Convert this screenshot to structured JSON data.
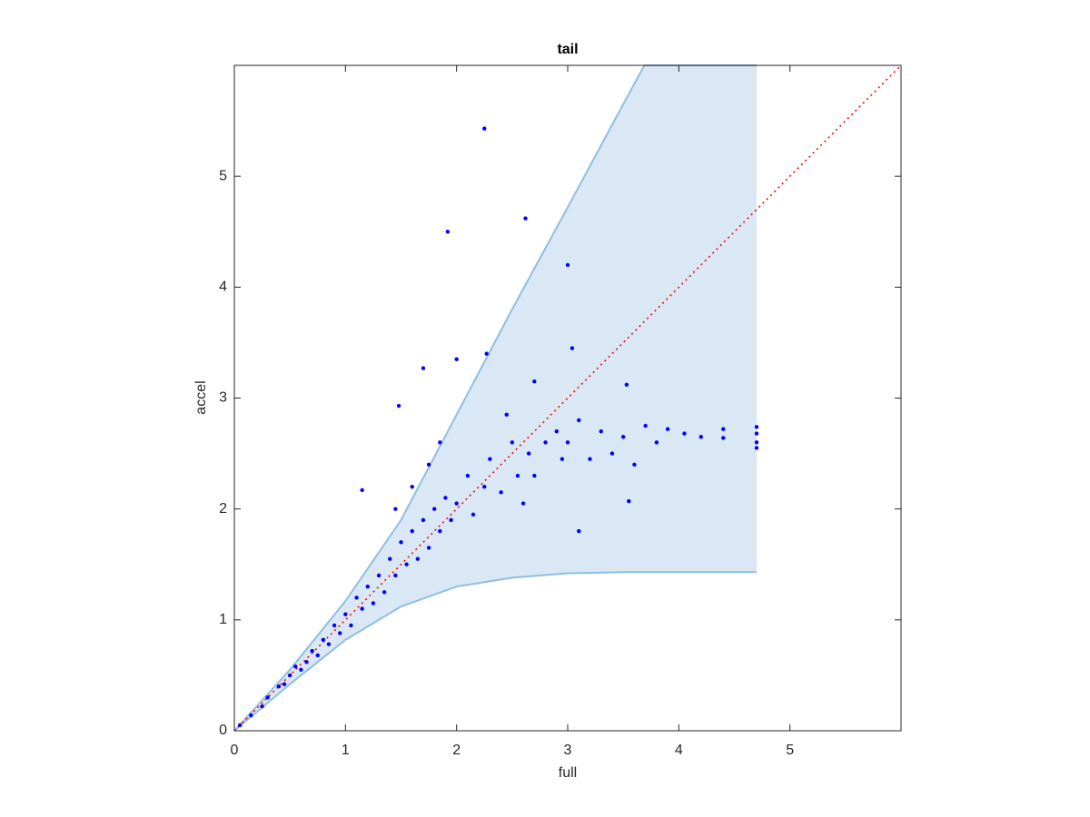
{
  "chart_data": {
    "type": "scatter",
    "title": "tail",
    "xlabel": "full",
    "ylabel": "accel",
    "xlim": [
      0,
      6
    ],
    "ylim": [
      0,
      6
    ],
    "xticks": [
      0,
      1,
      2,
      3,
      4,
      5
    ],
    "yticks": [
      0,
      1,
      2,
      3,
      4,
      5
    ],
    "band": {
      "color": "#d9e8f4",
      "edge_color": "#8fbfe0",
      "x": [
        0,
        0.5,
        1,
        1.5,
        2,
        2.5,
        3,
        3.5,
        3.69,
        4.7
      ],
      "upper": [
        0,
        0.55,
        1.17,
        1.9,
        2.85,
        3.8,
        4.72,
        5.65,
        6,
        6
      ],
      "lower": [
        0,
        0.42,
        0.82,
        1.12,
        1.3,
        1.38,
        1.42,
        1.43,
        1.43,
        1.43
      ]
    },
    "reference": {
      "color": "#ff0000",
      "x": [
        0,
        6
      ],
      "values": [
        0,
        6
      ]
    },
    "series": [
      {
        "color": "#0000ff",
        "x": [
          0.05,
          0.15,
          0.25,
          0.3,
          0.4,
          0.45,
          0.5,
          0.55,
          0.6,
          0.65,
          0.7,
          0.75,
          0.8,
          0.85,
          0.9,
          0.95,
          1,
          1.05,
          1.1,
          1.15,
          1.2,
          1.25,
          1.3,
          1.35,
          1.4,
          1.45,
          1.5,
          1.55,
          1.6,
          1.65,
          1.7,
          1.75,
          1.8,
          1.85,
          1.9,
          1.95,
          1.45,
          1.6,
          1.75,
          1.85,
          2,
          2.1,
          2.15,
          2.25,
          2.3,
          2.4,
          2.5,
          2.55,
          2.65,
          2.7,
          2.8,
          2.9,
          2.95,
          2.45,
          2.6,
          3,
          3.1,
          3.2,
          3.3,
          3.4,
          3.5,
          3.6,
          3.7,
          3.8,
          3.9,
          4.05,
          4.2,
          4.4,
          4.4,
          4.7,
          4.7,
          4.7,
          4.7,
          2.25,
          1.92,
          2.62,
          3.0,
          3.04,
          1.7,
          2.0,
          2.27,
          1.48,
          2.7,
          3.53,
          1.15,
          3.1,
          3.55
        ],
        "values": [
          0.05,
          0.14,
          0.22,
          0.3,
          0.4,
          0.42,
          0.5,
          0.58,
          0.55,
          0.62,
          0.72,
          0.68,
          0.82,
          0.78,
          0.95,
          0.88,
          1.05,
          0.95,
          1.2,
          1.1,
          1.3,
          1.15,
          1.4,
          1.25,
          1.55,
          1.4,
          1.7,
          1.5,
          1.8,
          1.55,
          1.9,
          1.65,
          2.0,
          1.8,
          2.1,
          1.9,
          2.0,
          2.2,
          2.4,
          2.6,
          2.05,
          2.3,
          1.95,
          2.2,
          2.45,
          2.15,
          2.6,
          2.3,
          2.5,
          2.3,
          2.6,
          2.7,
          2.45,
          2.85,
          2.05,
          2.6,
          2.8,
          2.45,
          2.7,
          2.5,
          2.65,
          2.4,
          2.75,
          2.6,
          2.72,
          2.68,
          2.65,
          2.72,
          2.64,
          2.74,
          2.68,
          2.6,
          2.55,
          5.43,
          4.5,
          4.62,
          4.2,
          3.45,
          3.27,
          3.35,
          3.4,
          2.93,
          3.15,
          3.12,
          2.17,
          1.8,
          2.07
        ]
      }
    ]
  }
}
